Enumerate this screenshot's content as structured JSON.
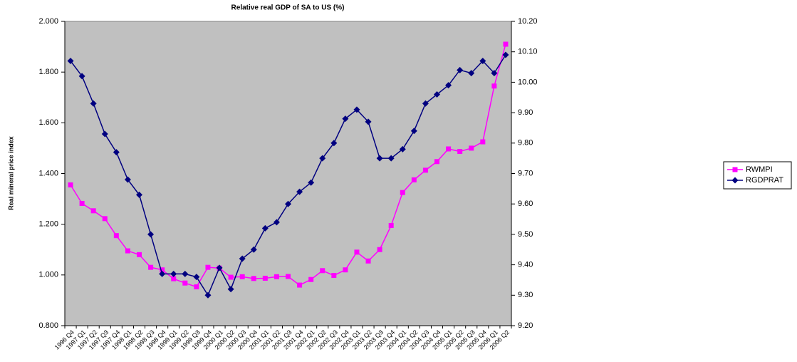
{
  "chart_data": {
    "type": "line",
    "title": "Relative real GDP of SA to US (%)",
    "y_label": "Real mineral price index",
    "categories": [
      "1996 Q4",
      "1997 Q1",
      "1997 Q2",
      "1997 Q3",
      "1997 Q4",
      "1998 Q1",
      "1998 Q2",
      "1998 Q3",
      "1998 Q4",
      "1999 Q1",
      "1999 Q2",
      "1999 Q3",
      "1999 Q4",
      "2000 Q1",
      "2000 Q2",
      "2000 Q3",
      "2000 Q4",
      "2001 Q1",
      "2001 Q2",
      "2001 Q3",
      "2001 Q4",
      "2002 Q1",
      "2002 Q2",
      "2002 Q3",
      "2002 Q4",
      "2003 Q1",
      "2003 Q2",
      "2003 Q3",
      "2003 Q4",
      "2004 Q1",
      "2004 Q2",
      "2004 Q3",
      "2004 Q4",
      "2005 Q1",
      "2005 Q2",
      "2005 Q3",
      "2005 Q4",
      "2006 Q1",
      "2006 Q2"
    ],
    "series": [
      {
        "name": "RWMPI",
        "color": "#ff00ff",
        "marker": "square",
        "values": [
          1.355,
          1.282,
          1.253,
          1.222,
          1.155,
          1.095,
          1.08,
          1.03,
          1.02,
          0.985,
          0.968,
          0.953,
          1.03,
          1.027,
          0.991,
          0.993,
          0.986,
          0.987,
          0.993,
          0.994,
          0.96,
          0.982,
          1.017,
          0.998,
          1.02,
          1.09,
          1.055,
          1.1,
          1.195,
          1.325,
          1.375,
          1.413,
          1.447,
          1.497,
          1.487,
          1.5,
          1.525,
          1.745,
          1.91
        ]
      },
      {
        "name": "RGDPRAT",
        "color": "#000080",
        "marker": "diamond",
        "axis": "y2",
        "values": [
          10.07,
          10.02,
          9.93,
          9.83,
          9.77,
          9.68,
          9.63,
          9.5,
          9.37,
          9.37,
          9.37,
          9.36,
          9.3,
          9.39,
          9.32,
          9.42,
          9.45,
          9.52,
          9.54,
          9.6,
          9.64,
          9.67,
          9.75,
          9.8,
          9.88,
          9.91,
          9.87,
          9.75,
          9.75,
          9.78,
          9.84,
          9.93,
          9.96,
          9.99,
          10.04,
          10.03,
          10.07,
          10.03,
          10.09
        ]
      }
    ],
    "ylim": [
      0.8,
      2.0
    ],
    "yticks": [
      {
        "value": 0.8,
        "label": "0.800"
      },
      {
        "value": 1.0,
        "label": "1.000"
      },
      {
        "value": 1.2,
        "label": "1.200"
      },
      {
        "value": 1.4,
        "label": "1.400"
      },
      {
        "value": 1.6,
        "label": "1.600"
      },
      {
        "value": 1.8,
        "label": "1.800"
      },
      {
        "value": 2.0,
        "label": "2.000"
      }
    ],
    "y2lim": [
      9.2,
      10.2
    ],
    "y2ticks": [
      {
        "value": 9.2,
        "label": "9.20"
      },
      {
        "value": 9.3,
        "label": "9.30"
      },
      {
        "value": 9.4,
        "label": "9.40"
      },
      {
        "value": 9.5,
        "label": "9.50"
      },
      {
        "value": 9.6,
        "label": "9.60"
      },
      {
        "value": 9.7,
        "label": "9.70"
      },
      {
        "value": 9.8,
        "label": "9.80"
      },
      {
        "value": 9.9,
        "label": "9.90"
      },
      {
        "value": 10.0,
        "label": "10.00"
      },
      {
        "value": 10.1,
        "label": "10.10"
      },
      {
        "value": 10.2,
        "label": "10.20"
      }
    ],
    "plot_background": "#c0c0c0",
    "grid": false,
    "legend": "right"
  }
}
